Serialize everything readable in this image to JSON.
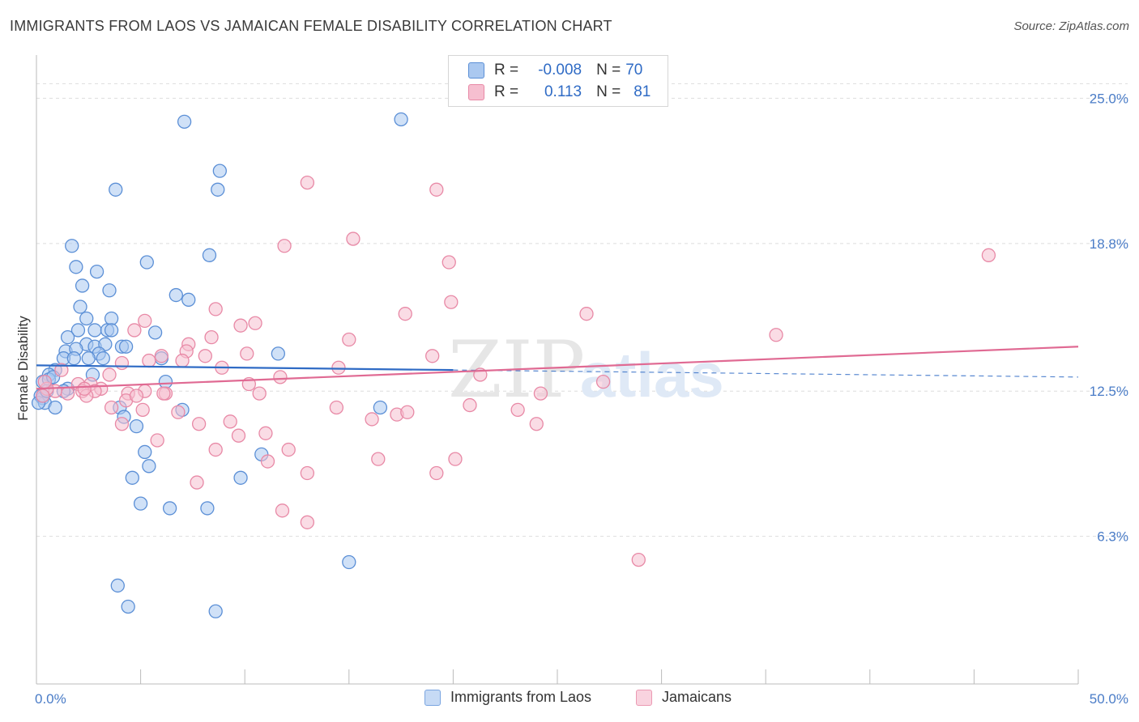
{
  "header": {
    "title": "IMMIGRANTS FROM LAOS VS JAMAICAN FEMALE DISABILITY CORRELATION CHART",
    "source": "Source: ZipAtlas.com"
  },
  "legend": {
    "rows": [
      {
        "r_label": "R =",
        "r_value": "-0.008",
        "n_label": "N =",
        "n_value": "70"
      },
      {
        "r_label": "R =",
        "r_value": "0.113",
        "n_label": "N =",
        "n_value": "81"
      }
    ]
  },
  "watermark": {
    "zip": "ZIP",
    "atlas": "atlas"
  },
  "colors": {
    "blue_fill": "#aac8f0",
    "blue_stroke": "#5b8fd6",
    "blue_line": "#2f6bc5",
    "pink_fill": "#f6bfd0",
    "pink_stroke": "#e889a6",
    "pink_line": "#e06a93",
    "tick_text": "#4a7cc7",
    "grid": "#dddddd"
  },
  "chart_data": {
    "type": "scatter",
    "title": "IMMIGRANTS FROM LAOS VS JAMAICAN FEMALE DISABILITY CORRELATION CHART",
    "ylabel": "Female Disability",
    "xlabel": "",
    "xlim": [
      0,
      50
    ],
    "ylim": [
      0,
      26.5
    ],
    "x_tick_labels": [
      "0.0%",
      "50.0%"
    ],
    "y_ticks": [
      6.3,
      12.5,
      18.8,
      25.0
    ],
    "y_tick_labels": [
      "6.3%",
      "12.5%",
      "18.8%",
      "25.0%"
    ],
    "grid": true,
    "legend_placement": "top-center",
    "series": [
      {
        "name": "Immigrants from Laos",
        "color": "#aac8f0",
        "r": -0.008,
        "n": 70,
        "trend": {
          "x": [
            0,
            20,
            50
          ],
          "y": [
            13.6,
            13.4,
            13.1
          ],
          "solid_until": 20
        },
        "points": [
          [
            7.1,
            24.0
          ],
          [
            17.5,
            24.1
          ],
          [
            8.8,
            21.9
          ],
          [
            3.8,
            21.1
          ],
          [
            8.7,
            21.1
          ],
          [
            1.7,
            18.7
          ],
          [
            8.3,
            18.3
          ],
          [
            5.3,
            18.0
          ],
          [
            1.9,
            17.8
          ],
          [
            2.9,
            17.6
          ],
          [
            2.2,
            17.0
          ],
          [
            3.5,
            16.8
          ],
          [
            6.7,
            16.6
          ],
          [
            7.3,
            16.4
          ],
          [
            2.1,
            16.1
          ],
          [
            2.4,
            15.6
          ],
          [
            3.6,
            15.6
          ],
          [
            2.0,
            15.1
          ],
          [
            2.8,
            15.1
          ],
          [
            3.4,
            15.1
          ],
          [
            3.6,
            15.1
          ],
          [
            5.7,
            15.0
          ],
          [
            1.5,
            14.8
          ],
          [
            2.4,
            14.5
          ],
          [
            2.8,
            14.4
          ],
          [
            4.1,
            14.4
          ],
          [
            4.3,
            14.4
          ],
          [
            3.3,
            14.5
          ],
          [
            1.4,
            14.2
          ],
          [
            1.9,
            14.3
          ],
          [
            3.0,
            14.1
          ],
          [
            1.3,
            13.9
          ],
          [
            1.8,
            13.9
          ],
          [
            2.5,
            13.9
          ],
          [
            3.2,
            13.9
          ],
          [
            11.6,
            14.1
          ],
          [
            6.0,
            13.9
          ],
          [
            0.9,
            13.4
          ],
          [
            2.7,
            13.2
          ],
          [
            0.6,
            13.2
          ],
          [
            0.3,
            12.9
          ],
          [
            0.6,
            13.0
          ],
          [
            1.5,
            12.6
          ],
          [
            0.2,
            12.3
          ],
          [
            0.3,
            12.2
          ],
          [
            0.4,
            12.0
          ],
          [
            0.1,
            12.0
          ],
          [
            0.3,
            12.3
          ],
          [
            0.5,
            12.5
          ],
          [
            0.9,
            11.8
          ],
          [
            1.3,
            12.5
          ],
          [
            0.8,
            13.1
          ],
          [
            6.2,
            12.9
          ],
          [
            4.0,
            11.8
          ],
          [
            4.2,
            11.4
          ],
          [
            7.0,
            11.7
          ],
          [
            4.8,
            11.0
          ],
          [
            16.5,
            11.8
          ],
          [
            5.2,
            9.9
          ],
          [
            10.8,
            9.8
          ],
          [
            5.4,
            9.3
          ],
          [
            4.6,
            8.8
          ],
          [
            9.8,
            8.8
          ],
          [
            5.0,
            7.7
          ],
          [
            6.4,
            7.5
          ],
          [
            8.2,
            7.5
          ],
          [
            15.0,
            5.2
          ],
          [
            3.9,
            4.2
          ],
          [
            4.4,
            3.3
          ],
          [
            8.6,
            3.1
          ]
        ]
      },
      {
        "name": "Jamaicans",
        "color": "#f6bfd0",
        "r": 0.113,
        "n": 81,
        "trend": {
          "x": [
            0,
            50
          ],
          "y": [
            12.6,
            14.4
          ]
        },
        "points": [
          [
            13.0,
            21.4
          ],
          [
            19.2,
            21.1
          ],
          [
            11.9,
            18.7
          ],
          [
            15.2,
            19.0
          ],
          [
            19.8,
            18.0
          ],
          [
            45.7,
            18.3
          ],
          [
            19.9,
            16.3
          ],
          [
            17.7,
            15.8
          ],
          [
            26.4,
            15.8
          ],
          [
            8.6,
            16.0
          ],
          [
            5.2,
            15.5
          ],
          [
            10.5,
            15.4
          ],
          [
            9.8,
            15.3
          ],
          [
            4.7,
            15.1
          ],
          [
            8.4,
            14.8
          ],
          [
            15.0,
            14.7
          ],
          [
            35.5,
            14.9
          ],
          [
            7.3,
            14.5
          ],
          [
            7.2,
            14.2
          ],
          [
            8.1,
            14.0
          ],
          [
            10.1,
            14.1
          ],
          [
            6.0,
            14.0
          ],
          [
            19.0,
            14.0
          ],
          [
            7.0,
            13.8
          ],
          [
            4.1,
            13.7
          ],
          [
            5.4,
            13.8
          ],
          [
            8.9,
            13.5
          ],
          [
            14.5,
            13.5
          ],
          [
            11.7,
            13.1
          ],
          [
            21.3,
            13.2
          ],
          [
            27.2,
            12.9
          ],
          [
            3.5,
            13.2
          ],
          [
            10.2,
            12.8
          ],
          [
            1.2,
            13.4
          ],
          [
            2.0,
            12.8
          ],
          [
            2.6,
            12.8
          ],
          [
            3.1,
            12.6
          ],
          [
            2.2,
            12.5
          ],
          [
            0.9,
            12.5
          ],
          [
            0.5,
            12.6
          ],
          [
            0.3,
            12.3
          ],
          [
            0.4,
            12.9
          ],
          [
            2.8,
            12.5
          ],
          [
            2.4,
            12.3
          ],
          [
            1.5,
            12.4
          ],
          [
            4.4,
            12.4
          ],
          [
            5.2,
            12.5
          ],
          [
            6.2,
            12.4
          ],
          [
            6.1,
            12.4
          ],
          [
            4.3,
            12.1
          ],
          [
            10.7,
            12.4
          ],
          [
            24.2,
            12.4
          ],
          [
            20.8,
            11.9
          ],
          [
            3.6,
            11.8
          ],
          [
            5.1,
            11.7
          ],
          [
            6.8,
            11.6
          ],
          [
            14.4,
            11.8
          ],
          [
            23.1,
            11.7
          ],
          [
            17.3,
            11.5
          ],
          [
            17.8,
            11.6
          ],
          [
            16.1,
            11.3
          ],
          [
            4.1,
            11.1
          ],
          [
            7.8,
            11.1
          ],
          [
            9.3,
            11.2
          ],
          [
            24.0,
            11.1
          ],
          [
            11.0,
            10.7
          ],
          [
            9.7,
            10.6
          ],
          [
            5.8,
            10.4
          ],
          [
            8.6,
            10.0
          ],
          [
            12.1,
            10.0
          ],
          [
            16.4,
            9.6
          ],
          [
            11.1,
            9.5
          ],
          [
            20.1,
            9.6
          ],
          [
            13.0,
            9.0
          ],
          [
            19.2,
            9.0
          ],
          [
            7.7,
            8.6
          ],
          [
            11.8,
            7.4
          ],
          [
            13.0,
            6.9
          ],
          [
            28.9,
            5.3
          ],
          [
            4.8,
            12.3
          ],
          [
            2.3,
            12.6
          ]
        ]
      }
    ]
  },
  "bottom_legend": {
    "items": [
      {
        "label": "Immigrants from Laos"
      },
      {
        "label": "Jamaicans"
      }
    ]
  }
}
